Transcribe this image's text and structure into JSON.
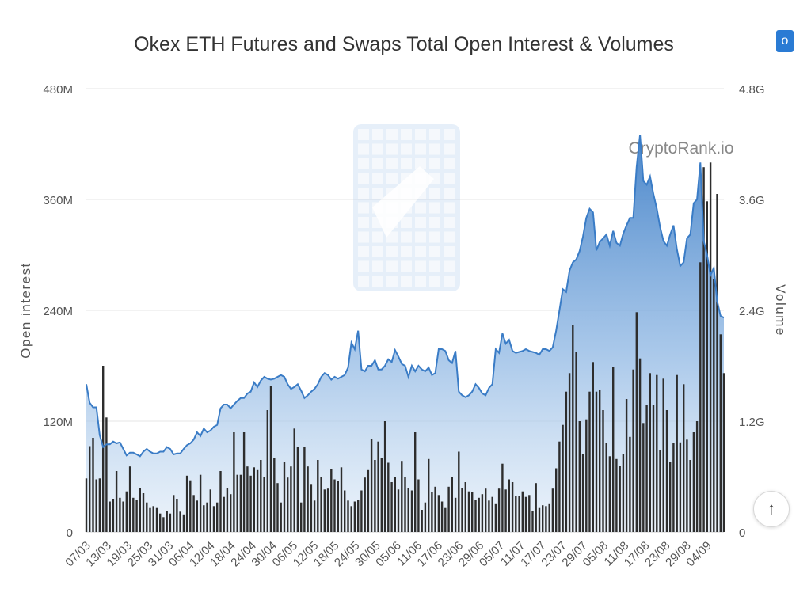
{
  "chart_data": {
    "type": "line+bar",
    "title": "Okex ETH Futures and Swaps Total Open Interest & Volumes",
    "watermark": "CryptoRank.io",
    "ylabel_left": "Open interest",
    "ylabel_right": "Volume",
    "ylim_left": [
      0,
      480
    ],
    "ylim_right": [
      0,
      4.8
    ],
    "yticks_left": [
      "0",
      "120M",
      "240M",
      "360M",
      "480M"
    ],
    "yticks_right": [
      "0",
      "1.2G",
      "2.4G",
      "3.6G",
      "4.8G"
    ],
    "xtick_labels": [
      "07/03",
      "13/03",
      "19/03",
      "25/03",
      "31/03",
      "06/04",
      "12/04",
      "18/04",
      "24/04",
      "30/04",
      "06/05",
      "12/05",
      "18/05",
      "24/05",
      "30/05",
      "05/06",
      "11/06",
      "17/06",
      "23/06",
      "29/06",
      "05/07",
      "11/07",
      "17/07",
      "23/07",
      "29/07",
      "05/08",
      "11/08",
      "17/08",
      "23/08",
      "29/08",
      "04/09"
    ],
    "open_interest_M": [
      160,
      140,
      135,
      135,
      105,
      92,
      95,
      95,
      98,
      96,
      97,
      90,
      83,
      86,
      86,
      84,
      82,
      87,
      90,
      87,
      85,
      85,
      87,
      87,
      92,
      90,
      84,
      85,
      85,
      90,
      94,
      96,
      100,
      108,
      104,
      112,
      108,
      110,
      114,
      116,
      134,
      138,
      138,
      134,
      138,
      142,
      145,
      145,
      150,
      152,
      162,
      157,
      164,
      168,
      166,
      165,
      166,
      168,
      170,
      168,
      160,
      155,
      157,
      160,
      153,
      145,
      148,
      152,
      155,
      160,
      168,
      172,
      170,
      165,
      168,
      166,
      168,
      170,
      178,
      205,
      198,
      218,
      176,
      174,
      180,
      180,
      186,
      176,
      176,
      180,
      187,
      184,
      197,
      190,
      182,
      180,
      168,
      180,
      174,
      180,
      176,
      174,
      178,
      170,
      172,
      198,
      198,
      196,
      186,
      183,
      196,
      152,
      148,
      146,
      148,
      152,
      160,
      156,
      150,
      148,
      156,
      160,
      198,
      194,
      215,
      204,
      208,
      196,
      194,
      195,
      196,
      198,
      196,
      195,
      194,
      192,
      198,
      198,
      196,
      200,
      218,
      240,
      263,
      260,
      283,
      292,
      295,
      304,
      320,
      340,
      350,
      346,
      305,
      314,
      318,
      322,
      310,
      326,
      313,
      310,
      323,
      332,
      340,
      340,
      395,
      430,
      380,
      376,
      385,
      366,
      350,
      330,
      315,
      310,
      322,
      332,
      306,
      288,
      292,
      318,
      322,
      356,
      360,
      400,
      315,
      300,
      278,
      286,
      250,
      234,
      232
    ],
    "volume_G": [
      0.58,
      0.93,
      1.02,
      0.57,
      0.58,
      1.8,
      1.24,
      0.33,
      0.36,
      0.66,
      0.37,
      0.33,
      0.44,
      0.71,
      0.37,
      0.35,
      0.48,
      0.42,
      0.32,
      0.26,
      0.28,
      0.26,
      0.2,
      0.16,
      0.23,
      0.2,
      0.4,
      0.36,
      0.22,
      0.19,
      0.61,
      0.56,
      0.4,
      0.34,
      0.62,
      0.29,
      0.32,
      0.46,
      0.28,
      0.32,
      0.66,
      0.38,
      0.48,
      0.41,
      1.08,
      0.62,
      0.62,
      1.08,
      0.71,
      0.61,
      0.7,
      0.67,
      0.78,
      0.6,
      1.32,
      1.58,
      0.8,
      0.53,
      0.32,
      0.76,
      0.59,
      0.71,
      1.12,
      0.92,
      0.32,
      0.92,
      0.71,
      0.52,
      0.34,
      0.78,
      0.6,
      0.46,
      0.47,
      0.68,
      0.57,
      0.55,
      0.7,
      0.45,
      0.34,
      0.28,
      0.33,
      0.35,
      0.45,
      0.59,
      0.67,
      1.01,
      0.78,
      0.98,
      0.8,
      1.2,
      0.75,
      0.54,
      0.6,
      0.46,
      0.77,
      0.6,
      0.48,
      0.45,
      1.08,
      0.57,
      0.24,
      0.32,
      0.79,
      0.43,
      0.49,
      0.4,
      0.33,
      0.26,
      0.49,
      0.6,
      0.37,
      0.87,
      0.48,
      0.54,
      0.44,
      0.43,
      0.35,
      0.37,
      0.41,
      0.47,
      0.34,
      0.38,
      0.31,
      0.47,
      0.74,
      0.46,
      0.57,
      0.54,
      0.39,
      0.39,
      0.44,
      0.38,
      0.4,
      0.23,
      0.53,
      0.26,
      0.29,
      0.28,
      0.31,
      0.47,
      0.69,
      0.98,
      1.16,
      1.52,
      1.72,
      2.24,
      1.95,
      1.2,
      0.84,
      1.22,
      1.52,
      1.84,
      1.52,
      1.54,
      1.32,
      0.96,
      0.82,
      1.79,
      0.79,
      0.72,
      0.84,
      1.44,
      1.03,
      1.76,
      2.38,
      1.88,
      1.18,
      1.38,
      1.72,
      1.38,
      1.7,
      0.89,
      1.66,
      1.32,
      0.76,
      0.96,
      1.7,
      0.97,
      1.6,
      1.0,
      0.78,
      1.08,
      1.2,
      2.92,
      3.95,
      3.58,
      4.0,
      2.74,
      3.66,
      2.14,
      1.72
    ]
  }
}
